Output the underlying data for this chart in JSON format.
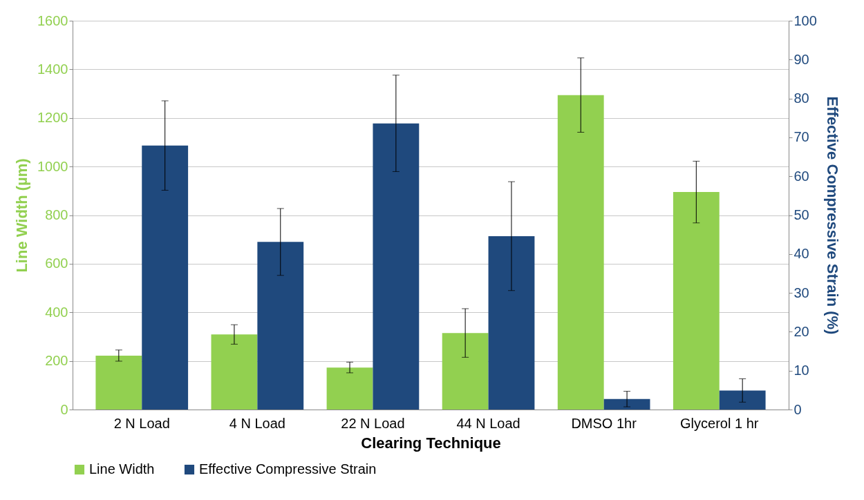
{
  "chart_data": {
    "type": "bar",
    "xlabel": "Clearing Technique",
    "ylabel": "Line Width (µm)",
    "y2label": "Effective Compressive Strain (%)",
    "categories": [
      "2 N Load",
      "4 N Load",
      "22 N Load",
      "44 N Load",
      "DMSO 1hr",
      "Glycerol 1 hr"
    ],
    "series": [
      {
        "name": "Line Width",
        "color": "#92d050",
        "values": [
          222,
          309,
          173,
          315,
          1294,
          895
        ],
        "errors": [
          23,
          40,
          22,
          100,
          153,
          127
        ]
      },
      {
        "name": "Effective Compressive Strain",
        "color": "#1f497d",
        "axis": "y2",
        "values": [
          67.9,
          43.1,
          73.6,
          44.6,
          2.7,
          4.9
        ],
        "errors": [
          11.5,
          8.6,
          12.4,
          14,
          2,
          3
        ]
      }
    ],
    "ylim": [
      0,
      1600
    ],
    "yticks": [
      0,
      200,
      400,
      600,
      800,
      1000,
      1200,
      1400,
      1600
    ],
    "y2lim": [
      0,
      100
    ],
    "y2ticks": [
      0,
      10,
      20,
      30,
      40,
      50,
      60,
      70,
      80,
      90,
      100
    ],
    "grid": "y",
    "legend": "bottom"
  }
}
